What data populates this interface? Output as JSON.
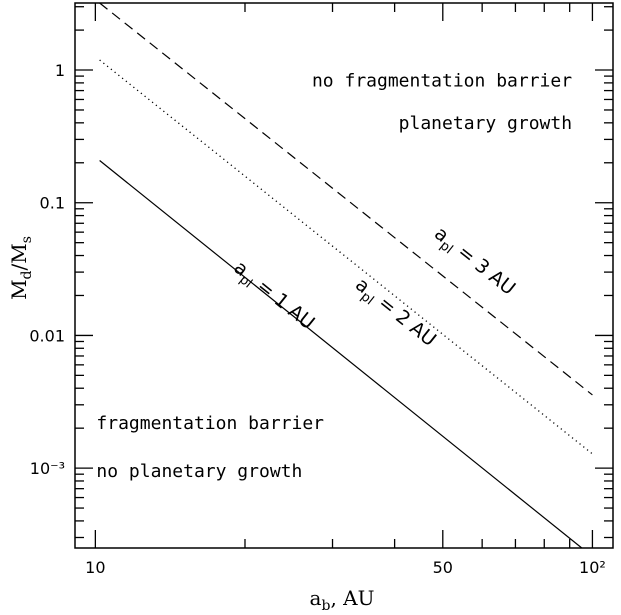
{
  "chart_data": {
    "type": "line",
    "x_scale": "log",
    "y_scale": "log",
    "xlim": [
      9.1,
      110
    ],
    "ylim": [
      0.00025,
      3.2
    ],
    "grid": false,
    "xlabel": {
      "main": "a",
      "sub": "b",
      "suffix": ",  AU"
    },
    "ylabel": {
      "m1": "M",
      "s1": "d",
      "slash": "/M",
      "s2": "s"
    },
    "x_ticks": [
      {
        "value": 10,
        "label": "10"
      },
      {
        "value": 50,
        "label": "50"
      },
      {
        "value": 100,
        "label": "10²"
      }
    ],
    "y_ticks": [
      {
        "value": 1,
        "label": "1"
      },
      {
        "value": 0.1,
        "label": "0.1"
      },
      {
        "value": 0.01,
        "label": "0.01"
      },
      {
        "value": 0.001,
        "label": "10⁻³"
      }
    ],
    "series": [
      {
        "name": "a_pl = 1 AU",
        "label_main": "a",
        "label_sub": "pl",
        "label_rest": " = 1 AU",
        "style": "solid",
        "x": [
          10.2,
          95.2
        ],
        "y": [
          0.208,
          0.00025
        ],
        "label_at": {
          "x": 22.5,
          "y": 0.0185
        }
      },
      {
        "name": "a_pl = 2 AU",
        "label_main": "a",
        "label_sub": "pl",
        "label_rest": " = 2 AU",
        "style": "dotted",
        "x": [
          10.2,
          100
        ],
        "y": [
          1.19,
          0.00128
        ],
        "label_at": {
          "x": 39.5,
          "y": 0.0138
        }
      },
      {
        "name": "a_pl = 3 AU",
        "label_main": "a",
        "label_sub": "pl",
        "label_rest": " = 3 AU",
        "style": "dashed",
        "x": [
          10.2,
          100
        ],
        "y": [
          3.2,
          0.00356
        ],
        "label_at": {
          "x": 57,
          "y": 0.0335
        }
      }
    ],
    "annotations": [
      {
        "text": "no fragmentation barrier",
        "x": 91,
        "y": 0.75,
        "anchor": "end"
      },
      {
        "text": "planetary growth",
        "x": 91,
        "y": 0.36,
        "anchor": "end"
      },
      {
        "text": "fragmentation barrier",
        "x": 10.05,
        "y": 0.00197,
        "anchor": "start"
      },
      {
        "text": "no planetary growth",
        "x": 10.05,
        "y": 0.00086,
        "anchor": "start"
      }
    ]
  }
}
